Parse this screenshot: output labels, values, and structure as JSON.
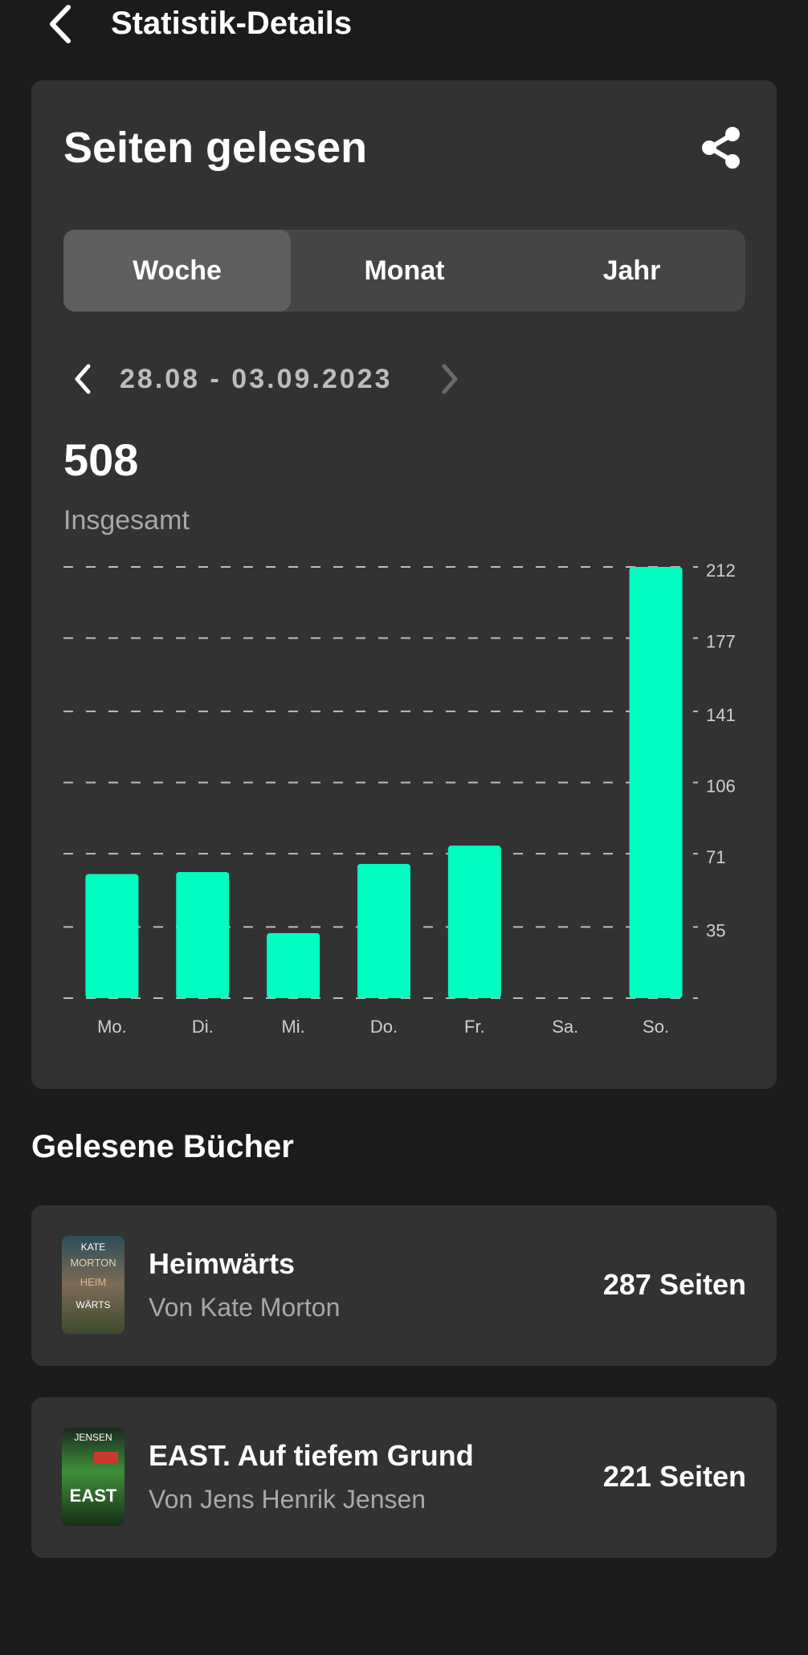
{
  "header": {
    "title": "Statistik-Details",
    "back_icon": "chevron-left-icon"
  },
  "stats_card": {
    "title": "Seiten gelesen",
    "share_icon": "share-icon",
    "tabs": [
      {
        "label": "Woche",
        "active": true
      },
      {
        "label": "Monat",
        "active": false
      },
      {
        "label": "Jahr",
        "active": false
      }
    ],
    "date_range": "28.08 - 03.09.2023",
    "total_value": "508",
    "total_label": "Insgesamt"
  },
  "chart_data": {
    "type": "bar",
    "categories": [
      "Mo.",
      "Di.",
      "Mi.",
      "Do.",
      "Fr.",
      "Sa.",
      "So."
    ],
    "values": [
      61,
      62,
      32,
      66,
      75,
      0,
      212
    ],
    "y_ticks": [
      35,
      71,
      106,
      141,
      177,
      212
    ],
    "ylim": [
      0,
      212
    ],
    "bar_color": "#00ffc1",
    "grid": "dashed horizontal"
  },
  "books_section": {
    "title": "Gelesene Bücher",
    "books": [
      {
        "title": "Heimwärts",
        "author": "Von Kate Morton",
        "pages": "287 Seiten",
        "cover_lines": [
          "KATE",
          "MORTON",
          "HEIM",
          "WÄRTS"
        ]
      },
      {
        "title": "EAST. Auf tiefem Grund",
        "author": "Von Jens Henrik Jensen",
        "pages": "221 Seiten",
        "cover_lines": [
          "JENSEN",
          "EAST"
        ]
      }
    ]
  }
}
